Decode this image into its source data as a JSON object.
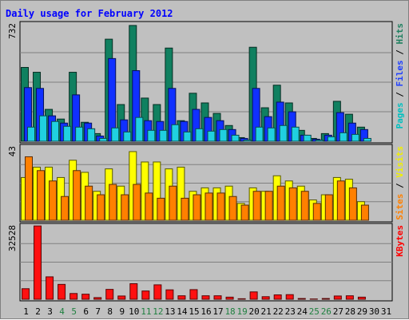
{
  "chart_data": {
    "type": "bar",
    "title": "Daily usage for February 2012",
    "categories": [
      "1",
      "2",
      "3",
      "4",
      "5",
      "6",
      "7",
      "8",
      "9",
      "10",
      "11",
      "12",
      "13",
      "14",
      "15",
      "16",
      "17",
      "18",
      "19",
      "20",
      "21",
      "22",
      "23",
      "24",
      "25",
      "26",
      "27",
      "28",
      "29",
      "30",
      "31"
    ],
    "weekend_days": [
      4,
      5,
      11,
      12,
      18,
      19,
      25,
      26
    ],
    "panels": [
      {
        "id": "top",
        "max_label": "732",
        "ymax": 732,
        "right_labels": [
          {
            "text": "Pages",
            "color": "#00c0c0"
          },
          {
            "text": " / ",
            "color": "#000000"
          },
          {
            "text": "Files",
            "color": "#2040ff"
          },
          {
            "text": " / ",
            "color": "#000000"
          },
          {
            "text": "Hits",
            "color": "#208060"
          }
        ],
        "series": [
          {
            "name": "Hits",
            "color": "#108060",
            "values": [
              460,
              430,
              200,
              140,
              430,
              120,
              50,
              635,
              230,
              720,
              270,
              230,
              580,
              130,
              300,
              240,
              175,
              100,
              25,
              585,
              210,
              350,
              240,
              70,
              20,
              50,
              250,
              170,
              90,
              0,
              0
            ]
          },
          {
            "name": "Files",
            "color": "#1030ff",
            "values": [
              335,
              330,
              160,
              115,
              290,
              115,
              35,
              515,
              135,
              440,
              130,
              125,
              330,
              125,
              200,
              150,
              130,
              75,
              20,
              330,
              155,
              245,
              185,
              40,
              15,
              40,
              180,
              115,
              75,
              0,
              0
            ]
          },
          {
            "name": "Pages",
            "color": "#20d0e0",
            "values": [
              90,
              160,
              125,
              95,
              90,
              80,
              20,
              85,
              60,
              150,
              70,
              70,
              105,
              60,
              80,
              65,
              75,
              40,
              10,
              90,
              85,
              100,
              90,
              40,
              10,
              30,
              55,
              45,
              20,
              0,
              0
            ]
          }
        ]
      },
      {
        "id": "middle",
        "max_label": "43",
        "ymax": 43,
        "right_labels": [
          {
            "text": "Sites",
            "color": "#ff8000"
          },
          {
            "text": " / ",
            "color": "#000000"
          },
          {
            "text": "Visits",
            "color": "#f0f000"
          }
        ],
        "series": [
          {
            "name": "Visits",
            "color": "#ffff00",
            "values": [
              25,
              31,
              31,
              25,
              35,
              28,
              17,
              30,
              20,
              40,
              34,
              34,
              30,
              31,
              17,
              19,
              19,
              20,
              10,
              19,
              17,
              26,
              23,
              20,
              12,
              15,
              25,
              24,
              11,
              0,
              0
            ]
          },
          {
            "name": "Sites",
            "color": "#ff8000",
            "values": [
              37,
              29,
              23,
              14,
              29,
              20,
              15,
              21,
              15,
              21,
              16,
              13,
              20,
              13,
              15,
              16,
              16,
              14,
              9,
              17,
              17,
              20,
              19,
              17,
              10,
              15,
              23,
              19,
              9,
              0,
              0
            ]
          }
        ]
      },
      {
        "id": "bottom",
        "max_label": "32528",
        "ymax": 32528,
        "right_labels": [
          {
            "text": "KBytes",
            "color": "#ff0000"
          }
        ],
        "series": [
          {
            "name": "KBytes",
            "color": "#ff1010",
            "values": [
              4800,
              32300,
              10000,
              6700,
              2700,
              2400,
              900,
              4500,
              1600,
              7000,
              3800,
              6500,
              4300,
              1700,
              4400,
              1700,
              1700,
              1100,
              400,
              3400,
              1300,
              2100,
              2200,
              500,
              300,
              500,
              1600,
              1700,
              1100,
              0,
              0
            ]
          }
        ]
      }
    ]
  }
}
